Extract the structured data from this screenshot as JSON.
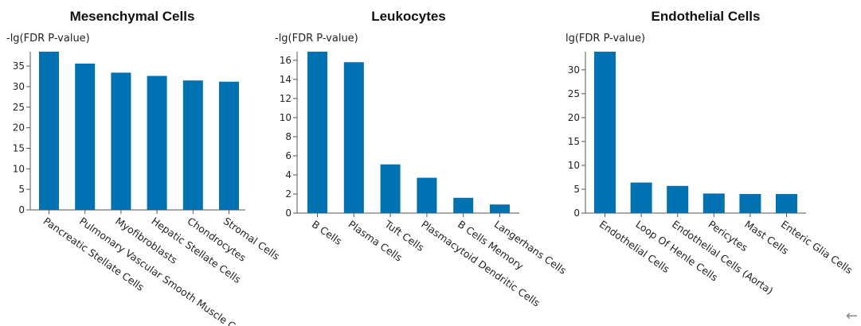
{
  "chart_data": [
    {
      "type": "bar",
      "title": "Mesenchymal Cells",
      "ylabel": "-lg(FDR P-value)",
      "categories": [
        "Pancreatic Stellate Cells",
        "Pulmonary Vascular Smooth Muscle Cells",
        "Myofibroblasts",
        "Hepatic Stellate Cells",
        "Chondrocytes",
        "Stromal Cells"
      ],
      "values": [
        38.5,
        35.6,
        33.4,
        32.6,
        31.5,
        31.2
      ],
      "ylim": [
        0,
        38.5
      ],
      "yticks": [
        0,
        5,
        10,
        15,
        20,
        25,
        30,
        35
      ],
      "color": "#0072b2"
    },
    {
      "type": "bar",
      "title": "Leukocytes",
      "ylabel": "-lg(FDR P-value)",
      "categories": [
        "B Cells",
        "Plasma Cells",
        "Tuft Cells",
        "Plasmacytoid Dendritic Cells",
        "B Cells Memory",
        "Langerhans Cells"
      ],
      "values": [
        16.9,
        15.8,
        5.1,
        3.7,
        1.6,
        0.9
      ],
      "ylim": [
        0,
        16.9
      ],
      "yticks": [
        0,
        2,
        4,
        6,
        8,
        10,
        12,
        14,
        16
      ],
      "color": "#0072b2"
    },
    {
      "type": "bar",
      "title": "Endothelial Cells",
      "ylabel": "lg(FDR P-value)",
      "categories": [
        "Endothelial Cells",
        "Loop Of Henle Cells",
        "Endothelial Cells (Aorta)",
        "Pericytes",
        "Mast Cells",
        "Enteric Glia Cells"
      ],
      "values": [
        33.8,
        6.4,
        5.7,
        4.1,
        4.0,
        4.0
      ],
      "ylim": [
        0,
        33.8
      ],
      "yticks": [
        0,
        5,
        10,
        15,
        20,
        25,
        30
      ],
      "color": "#0072b2"
    }
  ],
  "icons": {
    "corner": "arrow-left-icon"
  },
  "corner_glyph": "←"
}
